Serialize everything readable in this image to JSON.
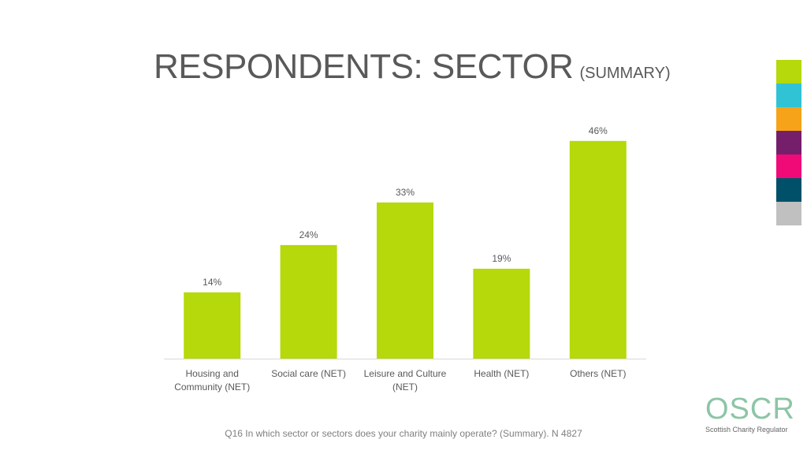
{
  "title": {
    "main": "RESPONDENTS: SECTOR",
    "sub": "(SUMMARY)"
  },
  "chart_data": {
    "type": "bar",
    "categories": [
      [
        "Housing and",
        "Community (NET)"
      ],
      [
        "Social care (NET)"
      ],
      [
        "Leisure and Culture",
        "(NET)"
      ],
      [
        "Health (NET)"
      ],
      [
        "Others (NET)"
      ]
    ],
    "values": [
      14,
      24,
      33,
      19,
      46
    ],
    "value_labels": [
      "14%",
      "24%",
      "33%",
      "19%",
      "46%"
    ],
    "ylim": [
      0,
      49
    ],
    "bar_color": "#b5d90b",
    "grid": false,
    "legend": "none"
  },
  "swatches": [
    "#b5d90b",
    "#2fc3d5",
    "#f6a319",
    "#751f6b",
    "#f00a78",
    "#00506a",
    "#c0c0c0"
  ],
  "logo": {
    "word": "OSCR",
    "tagline": "Scottish Charity Regulator"
  },
  "footnote": "Q16 In which sector or sectors does your charity mainly operate? (Summary). N 4827"
}
